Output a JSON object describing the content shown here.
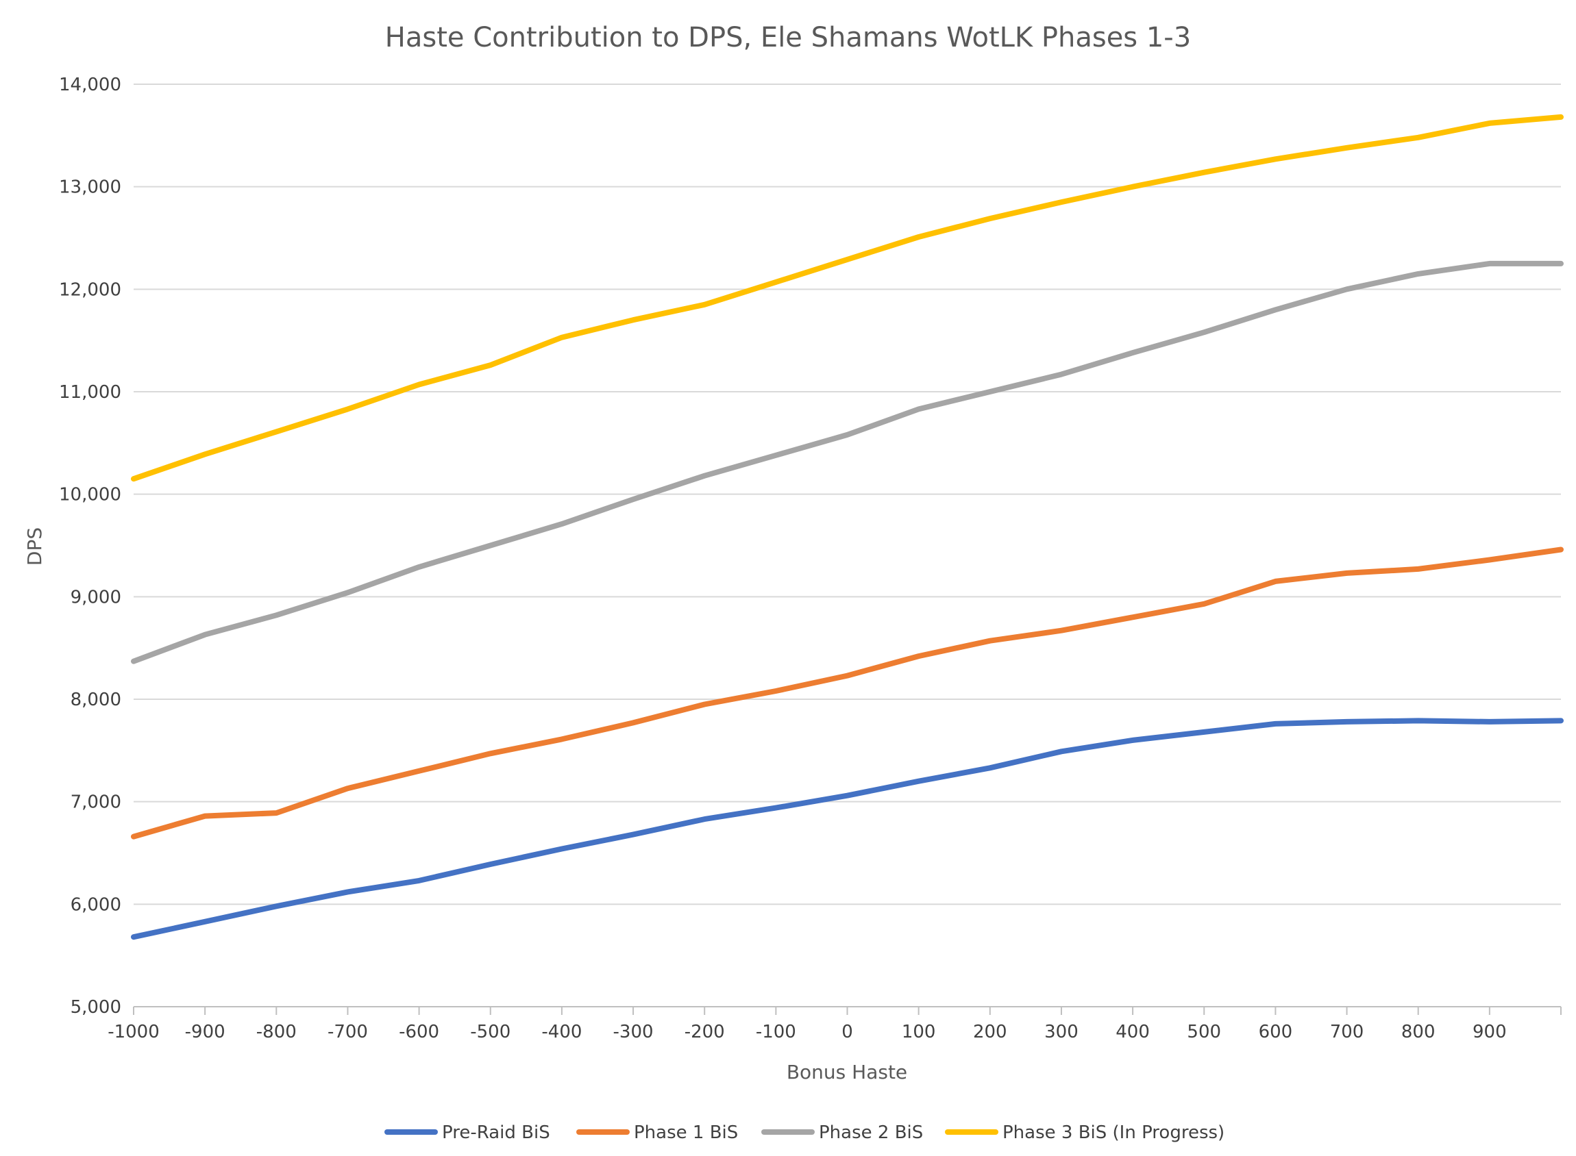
{
  "chart_data": {
    "type": "line",
    "title": "Haste Contribution to DPS, Ele Shamans WotLK Phases 1-3",
    "xlabel": "Bonus Haste",
    "ylabel": "DPS",
    "xlim": [
      -1000,
      1000
    ],
    "ylim": [
      5000,
      14000
    ],
    "x_ticks": [
      -1000,
      -900,
      -800,
      -700,
      -600,
      -500,
      -400,
      -300,
      -200,
      -100,
      0,
      100,
      200,
      300,
      400,
      500,
      600,
      700,
      800,
      900
    ],
    "x_tick_labels": [
      "-1000",
      "-900",
      "-800",
      "-700",
      "-600",
      "-500",
      "-400",
      "-300",
      "-200",
      "-100",
      "0",
      "100",
      "200",
      "300",
      "400",
      "500",
      "600",
      "700",
      "800",
      "900"
    ],
    "y_ticks": [
      5000,
      6000,
      7000,
      8000,
      9000,
      10000,
      11000,
      12000,
      13000,
      14000
    ],
    "y_tick_labels": [
      "5,000",
      "6,000",
      "7,000",
      "8,000",
      "9,000",
      "10,000",
      "11,000",
      "12,000",
      "13,000",
      "14,000"
    ],
    "grid": "horizontal",
    "legend": "bottom",
    "x": [
      -1000,
      -900,
      -800,
      -700,
      -600,
      -500,
      -400,
      -300,
      -200,
      -100,
      0,
      100,
      200,
      300,
      400,
      500,
      600,
      700,
      800,
      900,
      1000
    ],
    "series": [
      {
        "name": "Pre-Raid BiS",
        "color": "#4472c4",
        "values": [
          5680,
          5830,
          5980,
          6120,
          6230,
          6390,
          6540,
          6680,
          6830,
          6940,
          7060,
          7200,
          7330,
          7490,
          7600,
          7680,
          7760,
          7780,
          7790,
          7780,
          7790
        ]
      },
      {
        "name": "Phase 1 BiS",
        "color": "#ed7d31",
        "values": [
          6660,
          6860,
          6890,
          7130,
          7300,
          7470,
          7610,
          7770,
          7950,
          8080,
          8230,
          8420,
          8570,
          8670,
          8800,
          8930,
          9150,
          9230,
          9270,
          9360,
          9460
        ]
      },
      {
        "name": "Phase 2 BiS",
        "color": "#a5a5a5",
        "values": [
          8370,
          8630,
          8820,
          9040,
          9290,
          9500,
          9710,
          9950,
          10180,
          10380,
          10580,
          10830,
          11000,
          11170,
          11380,
          11580,
          11800,
          12000,
          12150,
          12250,
          12250
        ]
      },
      {
        "name": "Phase 3 BiS (In Progress)",
        "color": "#ffc000",
        "values": [
          10150,
          10390,
          10610,
          10830,
          11070,
          11260,
          11530,
          11700,
          11850,
          12070,
          12290,
          12510,
          12690,
          12850,
          13000,
          13140,
          13270,
          13380,
          13480,
          13620,
          13680
        ]
      }
    ]
  }
}
